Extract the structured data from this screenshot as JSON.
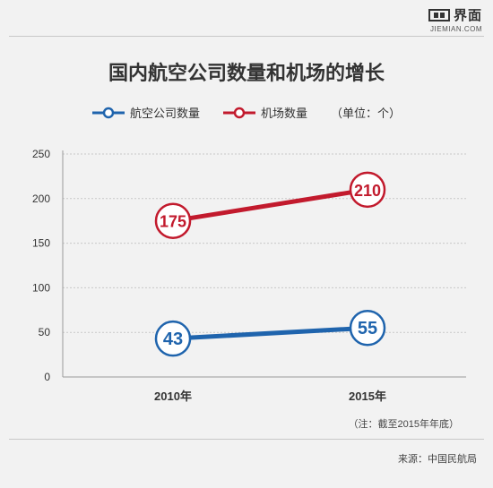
{
  "brand": {
    "name_cn": "界面",
    "name_en": "JIEMIAN.COM"
  },
  "note": "（注：截至2015年年底）",
  "source": "来源：中国民航局",
  "unit_label": "（单位：个）",
  "colors": {
    "airlines": "#1f64ad",
    "airports": "#c21a2d",
    "grid": "#c8c8c8",
    "axis": "#9a9a9a"
  },
  "chart_data": {
    "type": "line",
    "title": "国内航空公司数量和机场的增长",
    "categories": [
      "2010年",
      "2015年"
    ],
    "series": [
      {
        "name": "航空公司数量",
        "values": [
          43,
          55
        ],
        "color": "#1f64ad"
      },
      {
        "name": "机场数量",
        "values": [
          175,
          210
        ],
        "color": "#c21a2d"
      }
    ],
    "yticks": [
      0,
      50,
      100,
      150,
      200,
      250
    ],
    "ylim": [
      0,
      250
    ],
    "grid": true,
    "legend_position": "top"
  }
}
